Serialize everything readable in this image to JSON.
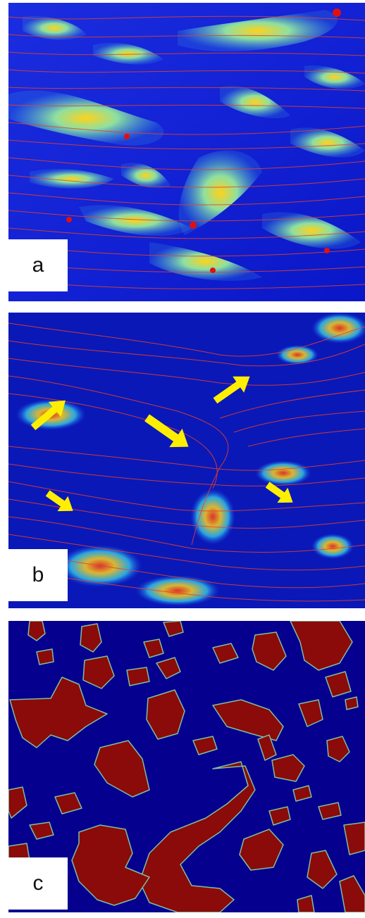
{
  "figure": {
    "panels": [
      {
        "id": "a",
        "label": "a",
        "type": "flow-field-heatmap"
      },
      {
        "id": "b",
        "label": "b",
        "type": "flow-field-heatmap-with-arrows"
      },
      {
        "id": "c",
        "label": "c",
        "type": "binary-phase-map"
      }
    ],
    "colors": {
      "background_blue": "#0a17c8",
      "map_background": "#06008f",
      "grain_fill": "#8b0a0a",
      "grain_outline": "#7fbf9f",
      "streamline": "#e8402a",
      "highlight_yellow": "#f3e81a",
      "arrow_yellow": "#ffee00"
    },
    "icons": [
      "arrow-icon"
    ]
  }
}
